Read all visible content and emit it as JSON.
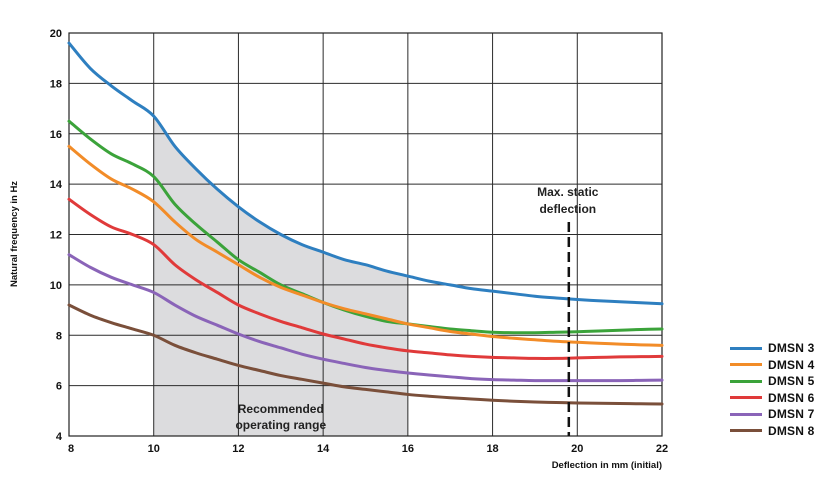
{
  "chart_data": {
    "type": "line",
    "title": "",
    "xlabel": "Deflection in mm (initial)",
    "ylabel": "Natural frequency in Hz",
    "xlim": [
      8,
      22
    ],
    "ylim": [
      4,
      20
    ],
    "x_ticks": [
      8,
      10,
      12,
      14,
      16,
      18,
      20,
      22
    ],
    "y_ticks": [
      4,
      6,
      8,
      10,
      12,
      14,
      16,
      18,
      20
    ],
    "grid": true,
    "legend_position": "bottom-right outside",
    "shaded_region": {
      "label_line1": "Recommended",
      "label_line2": "operating range",
      "x_range": [
        10,
        16
      ],
      "upper_series": "DMSN 3",
      "color": "#dcdcde"
    },
    "max_static_deflection": {
      "x": 19.8,
      "label_line1": "Max. static",
      "label_line2": "deflection"
    },
    "series": [
      {
        "name": "DMSN 3",
        "color": "#2e7fc0",
        "x": [
          8,
          8.5,
          9,
          9.5,
          10,
          10.5,
          11,
          11.5,
          12,
          12.5,
          13,
          13.5,
          14,
          14.5,
          15,
          15.5,
          16,
          16.5,
          17,
          17.5,
          18,
          18.5,
          19,
          19.5,
          20,
          20.5,
          21,
          21.5,
          22
        ],
        "values": [
          19.6,
          18.6,
          17.9,
          17.3,
          16.7,
          15.5,
          14.6,
          13.8,
          13.1,
          12.5,
          12.0,
          11.6,
          11.3,
          11.0,
          10.8,
          10.55,
          10.35,
          10.15,
          10.0,
          9.85,
          9.75,
          9.65,
          9.55,
          9.48,
          9.42,
          9.37,
          9.33,
          9.29,
          9.25
        ]
      },
      {
        "name": "DMSN 4",
        "color": "#f28c28",
        "x": [
          8,
          8.5,
          9,
          9.5,
          10,
          10.5,
          11,
          11.5,
          12,
          12.5,
          13,
          13.5,
          14,
          14.5,
          15,
          15.5,
          16,
          16.5,
          17,
          17.5,
          18,
          18.5,
          19,
          19.5,
          20,
          20.5,
          21,
          21.5,
          22
        ],
        "values": [
          15.5,
          14.8,
          14.2,
          13.8,
          13.3,
          12.5,
          11.8,
          11.3,
          10.8,
          10.3,
          9.9,
          9.6,
          9.3,
          9.05,
          8.85,
          8.65,
          8.45,
          8.3,
          8.15,
          8.05,
          7.95,
          7.88,
          7.82,
          7.76,
          7.72,
          7.68,
          7.65,
          7.62,
          7.6
        ]
      },
      {
        "name": "DMSN 5",
        "color": "#3ba33a",
        "x": [
          8,
          8.5,
          9,
          9.5,
          10,
          10.5,
          11,
          11.5,
          12,
          12.5,
          13,
          13.5,
          14,
          14.5,
          15,
          15.5,
          16,
          16.5,
          17,
          17.5,
          18,
          18.5,
          19,
          19.5,
          20,
          20.5,
          21,
          21.5,
          22
        ],
        "values": [
          16.5,
          15.8,
          15.2,
          14.8,
          14.3,
          13.2,
          12.4,
          11.7,
          11.0,
          10.5,
          10.0,
          9.65,
          9.3,
          9.0,
          8.75,
          8.55,
          8.45,
          8.35,
          8.25,
          8.18,
          8.12,
          8.1,
          8.1,
          8.12,
          8.14,
          8.17,
          8.2,
          8.23,
          8.25
        ]
      },
      {
        "name": "DMSN 6",
        "color": "#e03a3a",
        "x": [
          8,
          8.5,
          9,
          9.5,
          10,
          10.5,
          11,
          11.5,
          12,
          12.5,
          13,
          13.5,
          14,
          14.5,
          15,
          15.5,
          16,
          16.5,
          17,
          17.5,
          18,
          18.5,
          19,
          19.5,
          20,
          20.5,
          21,
          21.5,
          22
        ],
        "values": [
          13.4,
          12.8,
          12.3,
          12.0,
          11.6,
          10.8,
          10.2,
          9.7,
          9.2,
          8.85,
          8.55,
          8.3,
          8.05,
          7.85,
          7.65,
          7.5,
          7.38,
          7.3,
          7.22,
          7.16,
          7.12,
          7.1,
          7.08,
          7.08,
          7.1,
          7.12,
          7.14,
          7.15,
          7.16
        ]
      },
      {
        "name": "DMSN 7",
        "color": "#8a64b8",
        "x": [
          8,
          8.5,
          9,
          9.5,
          10,
          10.5,
          11,
          11.5,
          12,
          12.5,
          13,
          13.5,
          14,
          14.5,
          15,
          15.5,
          16,
          16.5,
          17,
          17.5,
          18,
          18.5,
          19,
          19.5,
          20,
          20.5,
          21,
          21.5,
          22
        ],
        "values": [
          11.2,
          10.7,
          10.3,
          10.0,
          9.7,
          9.2,
          8.75,
          8.4,
          8.05,
          7.75,
          7.5,
          7.25,
          7.05,
          6.88,
          6.72,
          6.6,
          6.5,
          6.42,
          6.35,
          6.28,
          6.24,
          6.22,
          6.2,
          6.2,
          6.2,
          6.2,
          6.2,
          6.21,
          6.22
        ]
      },
      {
        "name": "DMSN 8",
        "color": "#7a4f3a",
        "x": [
          8,
          8.5,
          9,
          9.5,
          10,
          10.5,
          11,
          11.5,
          12,
          12.5,
          13,
          13.5,
          14,
          14.5,
          15,
          15.5,
          16,
          16.5,
          17,
          17.5,
          18,
          18.5,
          19,
          19.5,
          20,
          20.5,
          21,
          21.5,
          22
        ],
        "values": [
          9.2,
          8.8,
          8.5,
          8.25,
          8.0,
          7.6,
          7.3,
          7.05,
          6.8,
          6.6,
          6.4,
          6.25,
          6.1,
          5.95,
          5.85,
          5.75,
          5.65,
          5.58,
          5.52,
          5.47,
          5.42,
          5.38,
          5.35,
          5.33,
          5.31,
          5.3,
          5.29,
          5.28,
          5.27
        ]
      }
    ],
    "legend": [
      {
        "label": "DMSN 3",
        "color": "#2e7fc0"
      },
      {
        "label": "DMSN 4",
        "color": "#f28c28"
      },
      {
        "label": "DMSN 5",
        "color": "#3ba33a"
      },
      {
        "label": "DMSN 6",
        "color": "#e03a3a"
      },
      {
        "label": "DMSN 7",
        "color": "#8a64b8"
      },
      {
        "label": "DMSN 8",
        "color": "#7a4f3a"
      }
    ]
  }
}
